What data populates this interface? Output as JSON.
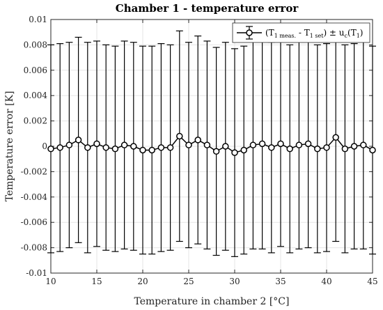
{
  "chart_data": {
    "type": "line",
    "title": "Chamber 1 - temperature error",
    "xlabel": "Temperature in chamber 2 [°C]",
    "ylabel": "Temperature error [K]",
    "xlim": [
      10,
      45
    ],
    "ylim": [
      -0.01,
      0.01
    ],
    "x_ticks": [
      10,
      15,
      20,
      25,
      30,
      35,
      40,
      45
    ],
    "x_tick_labels": [
      "10",
      "15",
      "20",
      "25",
      "30",
      "35",
      "40",
      "45"
    ],
    "y_ticks": [
      -0.01,
      -0.008,
      -0.006,
      -0.004,
      -0.002,
      0,
      0.002,
      0.004,
      0.006,
      0.008,
      0.01
    ],
    "y_tick_labels": [
      "-0.01",
      "-0.008",
      "-0.006",
      "-0.004",
      "-0.002",
      "0",
      "0.002",
      "0.004",
      "0.006",
      "0.008",
      "0.01"
    ],
    "grid": true,
    "legend_position": "top-right",
    "legend": {
      "prefix": "(T",
      "sub1": "1 meas.",
      "mid": " - T",
      "sub2": "1 set",
      "after": ") ± u",
      "sub3": "c",
      "tail1": "(T",
      "sub4": "1",
      "tail2": ")"
    },
    "series": [
      {
        "x": [
          10,
          11,
          12,
          13,
          14,
          15,
          16,
          17,
          18,
          19,
          20,
          21,
          22,
          23,
          24,
          25,
          26,
          27,
          28,
          29,
          30,
          31,
          32,
          33,
          34,
          35,
          36,
          37,
          38,
          39,
          40,
          41,
          42,
          43,
          44,
          45
        ],
        "y": [
          -0.0002,
          -0.0001,
          0.0001,
          0.0005,
          -0.0001,
          0.0002,
          -0.0001,
          -0.0002,
          0.0001,
          0.0,
          -0.0003,
          -0.0003,
          -0.0001,
          -0.0001,
          0.0008,
          0.0001,
          0.0005,
          0.0001,
          -0.0004,
          0.0,
          -0.0005,
          -0.0003,
          0.0001,
          0.0002,
          -0.0001,
          0.0002,
          -0.0002,
          0.0001,
          0.0002,
          -0.0002,
          -0.0001,
          0.0007,
          -0.0002,
          0.0,
          0.0001,
          -0.0003
        ],
        "err": [
          0.0082,
          0.0082,
          0.0081,
          0.0081,
          0.0083,
          0.0081,
          0.0081,
          0.0081,
          0.0082,
          0.0082,
          0.0082,
          0.0082,
          0.0082,
          0.0081,
          0.0083,
          0.0081,
          0.0082,
          0.0082,
          0.0082,
          0.0082,
          0.0082,
          0.0082,
          0.0082,
          0.0083,
          0.0083,
          0.0081,
          0.0082,
          0.0082,
          0.0082,
          0.0082,
          0.0082,
          0.0082,
          0.0082,
          0.0081,
          0.0082,
          0.0082
        ]
      }
    ]
  }
}
